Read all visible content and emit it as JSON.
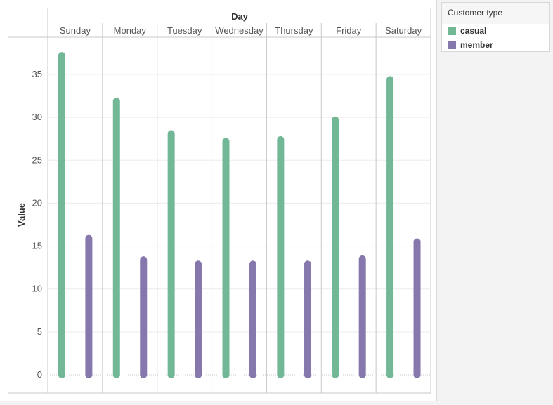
{
  "chart_data": {
    "type": "bar",
    "header": "Day",
    "ylabel": "Value",
    "categories": [
      "Sunday",
      "Monday",
      "Tuesday",
      "Wednesday",
      "Thursday",
      "Friday",
      "Saturday"
    ],
    "series": [
      {
        "name": "casual",
        "color": "#72b896",
        "values": [
          37.2,
          31.9,
          28.1,
          27.2,
          27.4,
          29.7,
          34.4
        ]
      },
      {
        "name": "member",
        "color": "#8677ac",
        "values": [
          15.9,
          13.4,
          12.9,
          12.9,
          12.9,
          13.5,
          15.5
        ]
      }
    ],
    "yticks": [
      0,
      5,
      10,
      15,
      20,
      25,
      30,
      35
    ],
    "ylim": [
      0,
      39
    ],
    "grid": true
  },
  "legend": {
    "title": "Customer type",
    "items": [
      {
        "label": "casual",
        "color": "#72b896"
      },
      {
        "label": "member",
        "color": "#8677ac"
      }
    ]
  }
}
